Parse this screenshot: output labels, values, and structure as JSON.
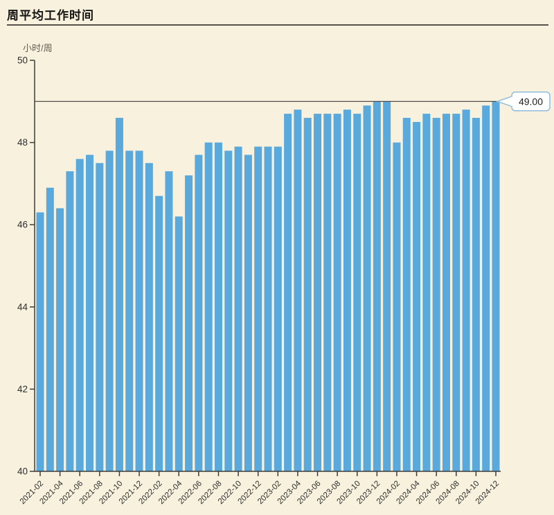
{
  "header": {
    "title": "周平均工作时间"
  },
  "colors": {
    "background": "#f8f1dd",
    "bar": "#5aa9dc",
    "axis": "#3c3c3c",
    "marker_line": "#3c3c3c",
    "title_text": "#141414",
    "tick_text": "#2e2e2e",
    "unit_text": "#625d51",
    "callout_border": "#8fbcdb",
    "callout_fill": "#ffffff",
    "callout_text": "#1c1c1c"
  },
  "chart_data": {
    "type": "bar",
    "title": "周平均工作时间",
    "ylabel": "小时/周",
    "xlabel": "",
    "ylim": [
      40,
      50
    ],
    "y_ticks": [
      50,
      48,
      46,
      44,
      42,
      40
    ],
    "grid": "off",
    "legend": "none",
    "x_tick_every": 2,
    "marker": {
      "value": 49.0,
      "label": "49.00"
    },
    "x": [
      "2021-02",
      "2021-03",
      "2021-04",
      "2021-05",
      "2021-06",
      "2021-07",
      "2021-08",
      "2021-09",
      "2021-10",
      "2021-11",
      "2021-12",
      "2022-01",
      "2022-02",
      "2022-03",
      "2022-04",
      "2022-05",
      "2022-06",
      "2022-07",
      "2022-08",
      "2022-09",
      "2022-10",
      "2022-11",
      "2022-12",
      "2023-01",
      "2023-02",
      "2023-03",
      "2023-04",
      "2023-05",
      "2023-06",
      "2023-07",
      "2023-08",
      "2023-09",
      "2023-10",
      "2023-11",
      "2023-12",
      "2024-01",
      "2024-02",
      "2024-03",
      "2024-04",
      "2024-05",
      "2024-06",
      "2024-07",
      "2024-08",
      "2024-09",
      "2024-10",
      "2024-11",
      "2024-12"
    ],
    "values": [
      46.3,
      46.9,
      46.4,
      47.3,
      47.6,
      47.7,
      47.5,
      47.8,
      48.6,
      47.8,
      47.8,
      47.5,
      46.7,
      47.3,
      46.2,
      47.2,
      47.7,
      48.0,
      48.0,
      47.8,
      47.9,
      47.7,
      47.9,
      47.9,
      47.9,
      48.7,
      48.8,
      48.6,
      48.7,
      48.7,
      48.7,
      48.8,
      48.7,
      48.9,
      49.0,
      49.0,
      48.0,
      48.6,
      48.5,
      48.7,
      48.6,
      48.7,
      48.7,
      48.8,
      48.6,
      48.9,
      49.0
    ]
  }
}
